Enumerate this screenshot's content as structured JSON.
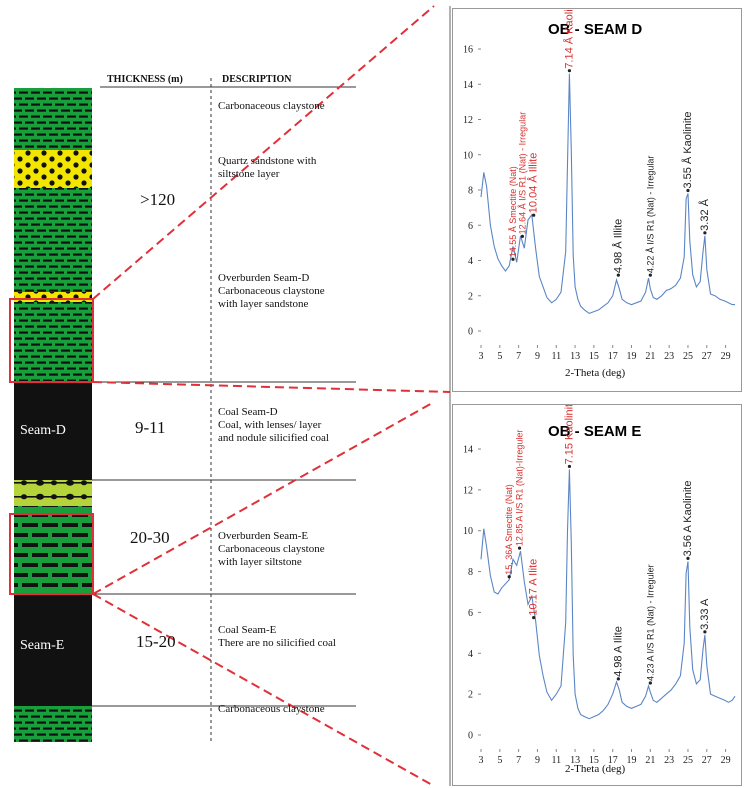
{
  "column_headers": {
    "thickness": "THICKNESS (m)",
    "description": "DESCRIPTION"
  },
  "layers": [
    {
      "id": "top",
      "thickness": ">120",
      "description_lines": [
        "Carbonaceous claystone"
      ]
    },
    {
      "id": "sand",
      "thickness": "",
      "description_lines": [
        "Quartz sandstone with",
        "siltstone layer"
      ]
    },
    {
      "id": "ob_d",
      "thickness": "",
      "description_lines": [
        "Overburden Seam-D",
        "Carbonaceous claystone",
        "with layer sandstone"
      ]
    },
    {
      "id": "seam_d",
      "label": "Seam-D",
      "thickness": "9-11",
      "description_lines": [
        "Coal Seam-D",
        "Coal, with lenses/ layer",
        "and nodule silicified coal"
      ]
    },
    {
      "id": "ob_e",
      "thickness": "20-30",
      "description_lines": [
        "Overburden Seam-E",
        "Carbonaceous claystone",
        "with layer siltstone"
      ]
    },
    {
      "id": "seam_e",
      "label": "Seam-E",
      "thickness": "15-20",
      "description_lines": [
        "Coal Seam-E",
        "There are no silicified coal"
      ]
    },
    {
      "id": "bottom",
      "thickness": "",
      "description_lines": [
        "Carbonaceous claystone"
      ]
    }
  ],
  "colors": {
    "claystone": "#1a9e3c",
    "coal": "#111111",
    "sandstone": "#f2e600",
    "siltstone": "#b5d33a",
    "highlight": "#e0303a",
    "trace": "#5b86c6",
    "red_text": "#d8302e"
  },
  "chart_data": [
    {
      "type": "line",
      "title": "OB - SEAM D",
      "xlabel": "2-Theta (deg)",
      "ylabel": "",
      "xlim": [
        3,
        30
      ],
      "ylim": [
        0,
        16
      ],
      "x_ticks": [
        3,
        5,
        7,
        9,
        11,
        13,
        15,
        17,
        19,
        21,
        23,
        25,
        27,
        29
      ],
      "y_ticks": [
        0,
        2,
        4,
        6,
        8,
        10,
        12,
        14,
        16
      ],
      "series": [
        {
          "x": [
            3.0,
            3.3,
            3.6,
            4.0,
            4.4,
            4.8,
            5.2,
            5.6,
            6.0,
            6.4,
            6.8,
            7.2,
            7.6,
            8.0,
            8.4,
            8.8,
            9.2,
            9.6,
            10.0,
            10.5,
            11.0,
            11.5,
            12.0,
            12.2,
            12.4,
            12.6,
            12.8,
            13.0,
            13.3,
            13.6,
            14.0,
            14.5,
            15.0,
            15.5,
            16.0,
            16.5,
            17.0,
            17.4,
            17.7,
            18.0,
            18.5,
            19.0,
            19.5,
            20.0,
            20.5,
            20.8,
            21.0,
            21.3,
            21.7,
            22.2,
            22.7,
            23.2,
            23.7,
            24.2,
            24.6,
            24.8,
            25.0,
            25.2,
            25.5,
            25.9,
            26.3,
            26.6,
            26.8,
            27.0,
            27.4,
            27.9,
            28.4,
            28.9,
            29.3,
            29.7,
            30.0
          ],
          "y": [
            7.6,
            9.0,
            8.2,
            6.0,
            4.8,
            4.1,
            3.7,
            3.4,
            3.7,
            4.8,
            3.9,
            5.4,
            4.7,
            6.3,
            6.6,
            4.7,
            3.1,
            2.5,
            1.9,
            1.6,
            1.8,
            2.2,
            4.5,
            9.5,
            14.6,
            10.2,
            4.3,
            2.5,
            1.8,
            1.4,
            1.2,
            1.0,
            1.1,
            1.2,
            1.4,
            1.6,
            2.0,
            2.9,
            2.4,
            1.8,
            1.6,
            1.5,
            1.6,
            1.7,
            2.2,
            3.0,
            2.4,
            1.9,
            1.8,
            2.0,
            2.3,
            2.4,
            2.6,
            3.0,
            4.2,
            7.5,
            7.8,
            5.1,
            3.2,
            2.5,
            2.8,
            4.5,
            5.4,
            3.5,
            2.1,
            2.0,
            1.8,
            1.7,
            1.6,
            1.5,
            1.5
          ]
        }
      ],
      "annotations": [
        {
          "text": "14.55 Å Smectite (Nat)",
          "x": 6.4,
          "y": 3.9,
          "color": "red"
        },
        {
          "text": "12.64 Å I/S R1 (Nat) - Irregular",
          "x": 7.4,
          "y": 5.2,
          "color": "red"
        },
        {
          "text": "10.04 Å Illite",
          "x": 8.6,
          "y": 6.4,
          "color": "red"
        },
        {
          "text": "7.14 Å Kaolinite",
          "x": 12.4,
          "y": 14.6,
          "color": "red"
        },
        {
          "text": "4.98 Å Illite",
          "x": 17.6,
          "y": 3.0,
          "color": "black"
        },
        {
          "text": "4.22 Å I/S R1 (Nat) - Irregular",
          "x": 21.0,
          "y": 3.0,
          "color": "black"
        },
        {
          "text": "3.55 Å Kaolinite",
          "x": 25.0,
          "y": 7.8,
          "color": "black"
        },
        {
          "text": "3.32 Å",
          "x": 26.8,
          "y": 5.4,
          "color": "black"
        }
      ]
    },
    {
      "type": "line",
      "title": "OB - SEAM E",
      "xlabel": "2-Theta (deg)",
      "ylabel": "",
      "xlim": [
        3,
        30
      ],
      "ylim": [
        0,
        14
      ],
      "x_ticks": [
        3,
        5,
        7,
        9,
        11,
        13,
        15,
        17,
        19,
        21,
        23,
        25,
        27,
        29
      ],
      "y_ticks": [
        0,
        2,
        4,
        6,
        8,
        10,
        12,
        14
      ],
      "series": [
        {
          "x": [
            3.0,
            3.3,
            3.6,
            4.0,
            4.4,
            4.8,
            5.2,
            5.6,
            6.0,
            6.4,
            6.8,
            7.2,
            7.6,
            8.0,
            8.4,
            8.8,
            9.2,
            9.6,
            10.0,
            10.5,
            11.0,
            11.5,
            12.0,
            12.2,
            12.4,
            12.6,
            12.8,
            13.0,
            13.3,
            13.6,
            14.0,
            14.5,
            15.0,
            15.5,
            16.0,
            16.5,
            17.0,
            17.4,
            17.7,
            18.0,
            18.5,
            19.0,
            19.5,
            20.0,
            20.5,
            20.8,
            21.0,
            21.3,
            21.7,
            22.2,
            22.7,
            23.2,
            23.7,
            24.2,
            24.6,
            24.8,
            25.0,
            25.2,
            25.5,
            25.9,
            26.3,
            26.6,
            26.8,
            27.0,
            27.4,
            27.9,
            28.4,
            28.9,
            29.3,
            29.7,
            30.0
          ],
          "y": [
            8.6,
            10.1,
            9.2,
            7.8,
            7.0,
            6.9,
            7.2,
            7.4,
            7.6,
            8.6,
            8.3,
            9.0,
            7.5,
            6.4,
            6.8,
            5.6,
            3.9,
            2.9,
            2.1,
            1.7,
            2.0,
            2.4,
            5.5,
            10.0,
            13.0,
            9.4,
            3.9,
            2.0,
            1.3,
            1.0,
            0.9,
            0.8,
            0.9,
            1.0,
            1.2,
            1.5,
            2.0,
            2.6,
            2.2,
            1.6,
            1.4,
            1.3,
            1.4,
            1.5,
            1.9,
            2.4,
            2.1,
            1.7,
            1.6,
            1.8,
            2.0,
            2.2,
            2.5,
            2.9,
            4.5,
            7.9,
            8.5,
            5.3,
            3.2,
            2.5,
            2.7,
            4.2,
            4.9,
            3.4,
            2.0,
            1.9,
            1.8,
            1.7,
            1.6,
            1.7,
            1.9
          ]
        }
      ],
      "annotations": [
        {
          "text": "15, 36A Smectite (Nat)",
          "x": 6.0,
          "y": 7.6,
          "color": "red"
        },
        {
          "text": "12.85 A I/S R1 (Nat)-Irreguler",
          "x": 7.1,
          "y": 9.0,
          "color": "red"
        },
        {
          "text": "10.17 A Ilite",
          "x": 8.6,
          "y": 5.6,
          "color": "red"
        },
        {
          "text": "7.15 Kaolinite",
          "x": 12.4,
          "y": 13.0,
          "color": "red"
        },
        {
          "text": "4.98 A Ilite",
          "x": 17.6,
          "y": 2.6,
          "color": "black"
        },
        {
          "text": "4.23 A I/S R1 (Nat) - Irreguler",
          "x": 21.0,
          "y": 2.4,
          "color": "black"
        },
        {
          "text": "3.56 A Kaolinite",
          "x": 25.0,
          "y": 8.5,
          "color": "black"
        },
        {
          "text": "3.33 A",
          "x": 26.8,
          "y": 4.9,
          "color": "black"
        }
      ]
    }
  ]
}
